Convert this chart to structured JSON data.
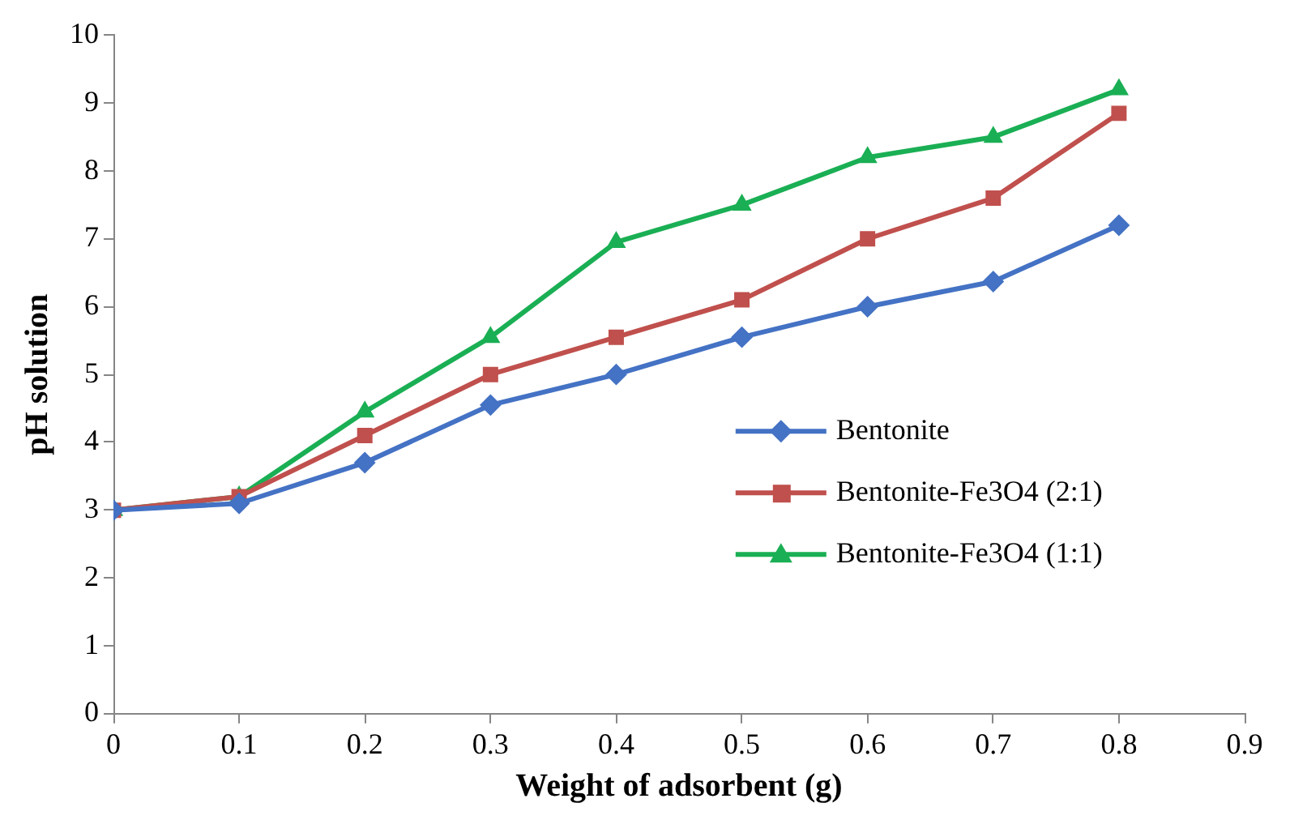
{
  "chart_data": {
    "type": "line",
    "xlabel": "Weight of adsorbent (g)",
    "ylabel": "pH solution",
    "x": [
      0,
      0.1,
      0.2,
      0.3,
      0.4,
      0.5,
      0.6,
      0.7,
      0.8
    ],
    "series": [
      {
        "name": "Bentonite",
        "color": "#4472c4",
        "marker": "diamond",
        "values": [
          3,
          3.1,
          3.7,
          4.55,
          5,
          5.55,
          6,
          6.37,
          7.2
        ]
      },
      {
        "name": "Bentonite-Fe3O4 (2:1)",
        "color": "#c0504d",
        "marker": "square",
        "values": [
          3,
          3.2,
          4.1,
          5,
          5.55,
          6.1,
          7,
          7.6,
          8.85
        ]
      },
      {
        "name": "Bentonite-Fe3O4 (1:1)",
        "color": "#1aaf54",
        "marker": "triangle",
        "values": [
          3,
          3.2,
          4.45,
          5.55,
          6.95,
          7.5,
          8.2,
          8.5,
          9.2
        ]
      }
    ],
    "xlim": [
      0,
      0.9
    ],
    "xticks": [
      0,
      0.1,
      0.2,
      0.3,
      0.4,
      0.5,
      0.6,
      0.7,
      0.8,
      0.9
    ],
    "ylim": [
      0,
      10
    ],
    "yticks": [
      0,
      1,
      2,
      3,
      4,
      5,
      6,
      7,
      8,
      9,
      10
    ],
    "grid": false,
    "legend": "right"
  }
}
